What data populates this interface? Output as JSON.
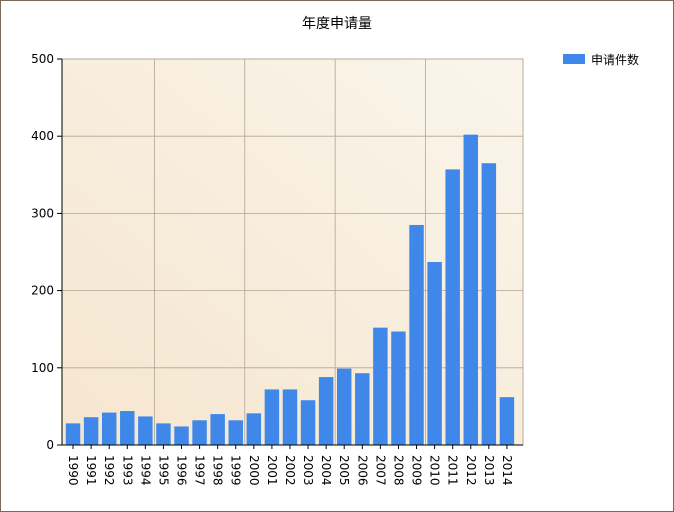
{
  "chart_data": {
    "type": "bar",
    "title": "年度申请量",
    "xlabel": "",
    "ylabel": "",
    "categories": [
      "1990",
      "1991",
      "1992",
      "1993",
      "1994",
      "1995",
      "1996",
      "1997",
      "1998",
      "1999",
      "2000",
      "2001",
      "2002",
      "2003",
      "2004",
      "2005",
      "2006",
      "2007",
      "2008",
      "2009",
      "2010",
      "2011",
      "2012",
      "2013",
      "2014"
    ],
    "series": [
      {
        "name": "申请件数",
        "color": "#3f88ea",
        "values": [
          28,
          36,
          42,
          44,
          37,
          28,
          24,
          32,
          40,
          32,
          41,
          72,
          72,
          58,
          88,
          99,
          93,
          152,
          147,
          285,
          237,
          357,
          402,
          365,
          62
        ]
      }
    ],
    "yticks": [
      "0",
      "100",
      "200",
      "300",
      "400",
      "500"
    ],
    "ylim": [
      0,
      500
    ],
    "grid": true,
    "legend": "top-right"
  }
}
